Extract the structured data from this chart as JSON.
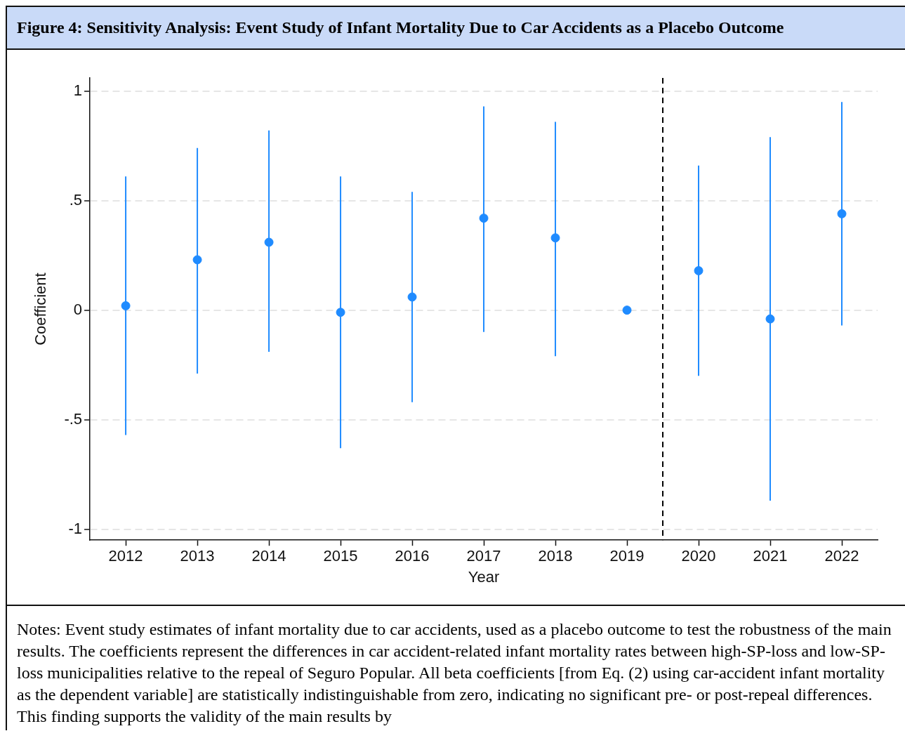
{
  "chart_data": {
    "type": "scatter",
    "title": "Figure 4: Sensitivity Analysis: Event Study of Infant Mortality Due to Car Accidents as a Placebo Outcome",
    "xlabel": "Year",
    "ylabel": "Coefficient",
    "x": [
      2012,
      2013,
      2014,
      2015,
      2016,
      2017,
      2018,
      2019,
      2020,
      2021,
      2022
    ],
    "series": [
      {
        "color": "#1f8bff",
        "values": [
          0.02,
          0.23,
          0.31,
          -0.01,
          0.06,
          0.42,
          0.33,
          0,
          0.18,
          -0.04,
          0.44
        ],
        "errors": [
          [
            -0.57,
            0.61
          ],
          [
            -0.29,
            0.74
          ],
          [
            -0.19,
            0.82
          ],
          [
            -0.63,
            0.61
          ],
          [
            -0.42,
            0.54
          ],
          [
            -0.1,
            0.93
          ],
          [
            -0.21,
            0.86
          ],
          null,
          [
            -0.3,
            0.66
          ],
          [
            -0.87,
            0.79
          ],
          [
            -0.07,
            0.95
          ]
        ]
      }
    ],
    "xlim": [
      2011.5,
      2022.5
    ],
    "xticks": [
      2012,
      2013,
      2014,
      2015,
      2016,
      2017,
      2018,
      2019,
      2020,
      2021,
      2022
    ],
    "ylim": [
      -1.05,
      1.06
    ],
    "yticks": [
      1,
      {
        "value": 0.5,
        "label": ".5"
      },
      0,
      {
        "value": -0.5,
        "label": "-.5"
      },
      -1
    ],
    "grid": "y",
    "marker": "circle",
    "ref_lines": [
      {
        "axis": "x",
        "value": 2019.5,
        "color": "#000000",
        "line_style": "dashed"
      }
    ],
    "annotations": [
      "Notes: Event study estimates of infant mortality due to car accidents, used as a placebo outcome to test the robustness of the main results. The coefficients represent the differences in car accident-related infant mortality rates between high-SP-loss and low-SP-loss municipalities relative to the repeal of Seguro Popular. All beta coefficients [from Eq. (2) using car-accident infant mortality as the dependent variable] are statistically indistinguishable from zero, indicating no significant pre- or post-repeal differences. This finding supports the validity of the main results by"
    ]
  }
}
